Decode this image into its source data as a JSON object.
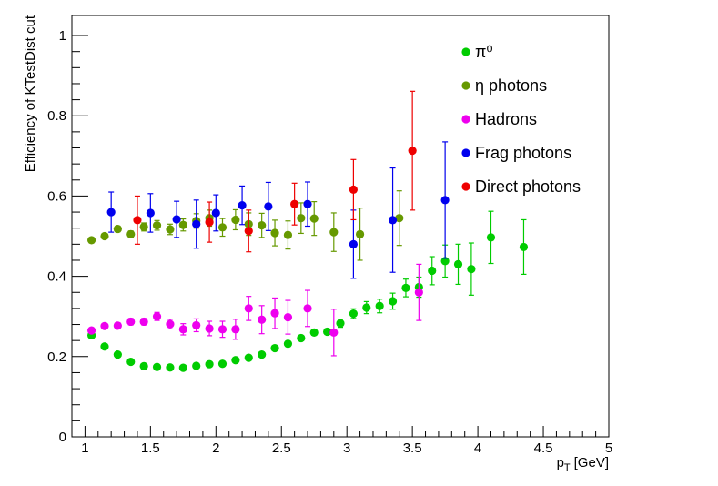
{
  "chart_data": {
    "type": "scatter",
    "title": "",
    "xlabel": "p",
    "xlabel_sub": "T",
    "xlabel_unit": "[GeV]",
    "ylabel": "Efficiency of KTestDist cut",
    "xlim": [
      0.9,
      5.0
    ],
    "ylim": [
      0,
      1.05
    ],
    "xticks": [
      1,
      1.5,
      2,
      2.5,
      3,
      3.5,
      4,
      4.5,
      5
    ],
    "xtick_labels": [
      "1",
      "1.5",
      "2",
      "2.5",
      "3",
      "3.5",
      "4",
      "4.5",
      "5"
    ],
    "yticks": [
      0,
      0.2,
      0.4,
      0.6,
      0.8,
      1
    ],
    "ytick_labels": [
      "0",
      "0.2",
      "0.4",
      "0.6",
      "0.8",
      "1"
    ],
    "legend_position": "top-right",
    "series": [
      {
        "name": "π⁰",
        "color": "#00cc00",
        "points": [
          [
            1.05,
            0.253,
            0.005
          ],
          [
            1.15,
            0.225,
            0.005
          ],
          [
            1.25,
            0.205,
            0.005
          ],
          [
            1.35,
            0.187,
            0.005
          ],
          [
            1.45,
            0.176,
            0.005
          ],
          [
            1.55,
            0.174,
            0.005
          ],
          [
            1.65,
            0.173,
            0.005
          ],
          [
            1.75,
            0.172,
            0.005
          ],
          [
            1.85,
            0.177,
            0.005
          ],
          [
            1.95,
            0.181,
            0.005
          ],
          [
            2.05,
            0.182,
            0.005
          ],
          [
            2.15,
            0.191,
            0.005
          ],
          [
            2.25,
            0.197,
            0.005
          ],
          [
            2.35,
            0.205,
            0.005
          ],
          [
            2.45,
            0.221,
            0.005
          ],
          [
            2.55,
            0.232,
            0.005
          ],
          [
            2.65,
            0.246,
            0.006
          ],
          [
            2.75,
            0.26,
            0.006
          ],
          [
            2.85,
            0.262,
            0.007
          ],
          [
            2.95,
            0.283,
            0.01
          ],
          [
            3.05,
            0.307,
            0.012
          ],
          [
            3.15,
            0.322,
            0.015
          ],
          [
            3.25,
            0.326,
            0.017
          ],
          [
            3.35,
            0.338,
            0.02
          ],
          [
            3.45,
            0.371,
            0.022
          ],
          [
            3.55,
            0.373,
            0.025
          ],
          [
            3.65,
            0.414,
            0.035
          ],
          [
            3.75,
            0.438,
            0.04
          ],
          [
            3.85,
            0.43,
            0.05
          ],
          [
            3.95,
            0.418,
            0.065
          ],
          [
            4.1,
            0.497,
            0.065
          ],
          [
            4.35,
            0.473,
            0.068
          ]
        ]
      },
      {
        "name": "η photons",
        "color": "#669900",
        "points": [
          [
            1.05,
            0.49,
            0.005
          ],
          [
            1.15,
            0.5,
            0.006
          ],
          [
            1.25,
            0.518,
            0.007
          ],
          [
            1.35,
            0.505,
            0.008
          ],
          [
            1.45,
            0.523,
            0.01
          ],
          [
            1.55,
            0.527,
            0.012
          ],
          [
            1.65,
            0.517,
            0.013
          ],
          [
            1.75,
            0.528,
            0.015
          ],
          [
            1.85,
            0.538,
            0.018
          ],
          [
            1.95,
            0.545,
            0.02
          ],
          [
            2.05,
            0.522,
            0.022
          ],
          [
            2.15,
            0.541,
            0.025
          ],
          [
            2.25,
            0.53,
            0.028
          ],
          [
            2.35,
            0.527,
            0.03
          ],
          [
            2.45,
            0.508,
            0.032
          ],
          [
            2.55,
            0.503,
            0.035
          ],
          [
            2.65,
            0.545,
            0.038
          ],
          [
            2.75,
            0.544,
            0.042
          ],
          [
            2.9,
            0.51,
            0.048
          ],
          [
            3.1,
            0.505,
            0.065
          ],
          [
            3.4,
            0.545,
            0.068
          ]
        ]
      },
      {
        "name": "Hadrons",
        "color": "#ee00ee",
        "points": [
          [
            1.05,
            0.265,
            0.005
          ],
          [
            1.15,
            0.276,
            0.006
          ],
          [
            1.25,
            0.277,
            0.007
          ],
          [
            1.35,
            0.287,
            0.008
          ],
          [
            1.45,
            0.287,
            0.008
          ],
          [
            1.55,
            0.3,
            0.01
          ],
          [
            1.65,
            0.281,
            0.012
          ],
          [
            1.75,
            0.268,
            0.014
          ],
          [
            1.85,
            0.278,
            0.016
          ],
          [
            1.95,
            0.27,
            0.018
          ],
          [
            2.05,
            0.268,
            0.02
          ],
          [
            2.15,
            0.268,
            0.025
          ],
          [
            2.25,
            0.32,
            0.03
          ],
          [
            2.35,
            0.292,
            0.035
          ],
          [
            2.45,
            0.308,
            0.038
          ],
          [
            2.55,
            0.298,
            0.042
          ],
          [
            2.7,
            0.32,
            0.045
          ],
          [
            2.9,
            0.26,
            0.058
          ],
          [
            3.55,
            0.36,
            0.07
          ]
        ]
      },
      {
        "name": "Frag photons",
        "color": "#0000ee",
        "points": [
          [
            1.2,
            0.56,
            0.05
          ],
          [
            1.5,
            0.558,
            0.048
          ],
          [
            1.7,
            0.542,
            0.045
          ],
          [
            1.85,
            0.53,
            0.06
          ],
          [
            2.0,
            0.558,
            0.045
          ],
          [
            2.2,
            0.577,
            0.048
          ],
          [
            2.4,
            0.574,
            0.06
          ],
          [
            2.7,
            0.58,
            0.055
          ],
          [
            3.05,
            0.48,
            0.085
          ],
          [
            3.35,
            0.54,
            0.13
          ],
          [
            3.75,
            0.59,
            0.145
          ]
        ]
      },
      {
        "name": "Direct photons",
        "color": "#ee0000",
        "points": [
          [
            1.4,
            0.54,
            0.06
          ],
          [
            1.95,
            0.535,
            0.05
          ],
          [
            2.25,
            0.513,
            0.052
          ],
          [
            2.6,
            0.58,
            0.052
          ],
          [
            3.05,
            0.616,
            0.075
          ],
          [
            3.5,
            0.713,
            0.148
          ]
        ]
      }
    ]
  }
}
